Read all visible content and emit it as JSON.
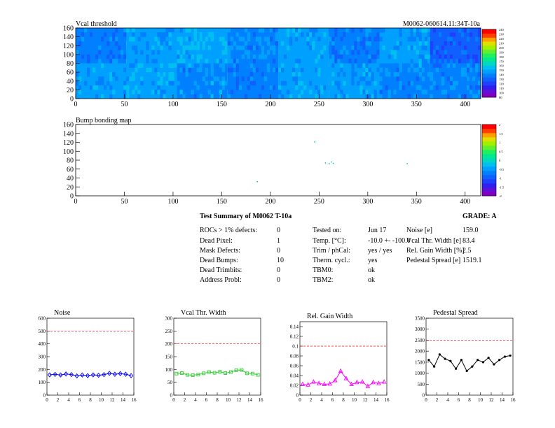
{
  "heatmap1": {
    "title": "Vcal threshold",
    "module_tag": "M0062-060614.11:34T-10a",
    "y_ticks": [
      "0",
      "20",
      "40",
      "60",
      "80",
      "100",
      "120",
      "140",
      "160"
    ],
    "x_ticks": [
      "0",
      "50",
      "100",
      "150",
      "200",
      "250",
      "300",
      "350",
      "400"
    ],
    "scale_labels": [
      "80",
      "100",
      "110",
      "120",
      "130",
      "140",
      "150",
      "160",
      "170",
      "180",
      "190",
      "200",
      "210",
      "220",
      "230",
      "240"
    ]
  },
  "heatmap2": {
    "title": "Bump bonding map",
    "y_ticks": [
      "0",
      "20",
      "40",
      "60",
      "80",
      "100",
      "120",
      "140",
      "160"
    ],
    "x_ticks": [
      "0",
      "50",
      "100",
      "150",
      "200",
      "250",
      "300",
      "350",
      "400"
    ],
    "scale_labels": [
      "-2",
      "-1.5",
      "-1",
      "-0.5",
      "0",
      "0.5",
      "1",
      "1.5",
      "2"
    ]
  },
  "summary": {
    "title": "Test Summary of M0062    T-10a",
    "grade": "GRADE:  A",
    "left_labels": [
      "ROCs > 1% defects:",
      "Dead Pixel:",
      "Mask Defects:",
      "Dead Bumps:",
      "Dead Trimbits:",
      "Address Probl:"
    ],
    "left_values": [
      "0",
      "1",
      "0",
      "10",
      "0",
      "0"
    ],
    "mid_labels": [
      "Tested on:",
      "Temp. [°C]:",
      "Trim / phCal:",
      "Therm. cycl.:",
      "TBM0:",
      "TBM2:"
    ],
    "mid_values": [
      "Jun 17",
      "-10.0 +- -100.0",
      "yes / yes",
      "yes",
      "ok",
      "ok"
    ],
    "right_labels": [
      "Noise [e]",
      "Vcal Thr. Width [e]",
      "Rel. Gain Width [%]",
      "Pedestal Spread [e]"
    ],
    "right_values": [
      "159.0",
      "83.4",
      "2.5",
      "1519.1"
    ]
  },
  "colors": {
    "noise": "#0000ff",
    "vcal": "#33cc33",
    "gain": "#ff00ff",
    "pedestal": "#000000",
    "limit": "#ff0000"
  },
  "chart_data": [
    {
      "type": "heatmap",
      "title": "Vcal threshold",
      "xlim": [
        0,
        416
      ],
      "ylim": [
        0,
        160
      ],
      "value_range": [
        80,
        240
      ],
      "roc_grid_rows": 2,
      "roc_grid_cols": 8
    },
    {
      "type": "heatmap",
      "title": "Bump bonding map",
      "xlim": [
        0,
        416
      ],
      "ylim": [
        0,
        160
      ],
      "value_range": [
        -2,
        2
      ],
      "points": [
        {
          "x": 186,
          "y": 33
        },
        {
          "x": 245,
          "y": 122
        },
        {
          "x": 256,
          "y": 75
        },
        {
          "x": 260,
          "y": 73
        },
        {
          "x": 262,
          "y": 77
        },
        {
          "x": 264,
          "y": 74
        },
        {
          "x": 340,
          "y": 73
        }
      ]
    },
    {
      "type": "line",
      "title": "Noise",
      "x": [
        0,
        1,
        2,
        3,
        4,
        5,
        6,
        7,
        8,
        9,
        10,
        11,
        12,
        13,
        14,
        15
      ],
      "values": [
        158,
        162,
        157,
        165,
        160,
        150,
        157,
        152,
        158,
        155,
        160,
        170,
        163,
        168,
        163,
        152
      ],
      "xlim": [
        0,
        16
      ],
      "ylim": [
        0,
        600
      ],
      "y_ticks": [
        "0",
        "100",
        "200",
        "300",
        "400",
        "500",
        "600"
      ],
      "x_ticks": [
        "0",
        "2",
        "4",
        "6",
        "8",
        "10",
        "12",
        "14",
        "16"
      ],
      "limit": 500
    },
    {
      "type": "line",
      "title": "Vcal Thr. Width",
      "x": [
        0,
        1,
        2,
        3,
        4,
        5,
        6,
        7,
        8,
        9,
        10,
        11,
        12,
        13,
        14,
        15
      ],
      "values": [
        84,
        86,
        79,
        78,
        80,
        85,
        90,
        87,
        91,
        86,
        90,
        97,
        98,
        85,
        84,
        79
      ],
      "xlim": [
        0,
        16
      ],
      "ylim": [
        0,
        300
      ],
      "y_ticks": [
        "0",
        "50",
        "100",
        "150",
        "200",
        "250",
        "300"
      ],
      "x_ticks": [
        "0",
        "2",
        "4",
        "6",
        "8",
        "10",
        "12",
        "14",
        "16"
      ],
      "limit": 200
    },
    {
      "type": "line",
      "title": "Rel. Gain Width",
      "x": [
        0,
        1,
        2,
        3,
        4,
        5,
        6,
        7,
        8,
        9,
        10,
        11,
        12,
        13,
        14,
        15
      ],
      "values": [
        0.022,
        0.021,
        0.027,
        0.024,
        0.022,
        0.023,
        0.03,
        0.049,
        0.034,
        0.022,
        0.026,
        0.027,
        0.018,
        0.026,
        0.024,
        0.027
      ],
      "xlim": [
        0,
        16
      ],
      "ylim": [
        0,
        0.15
      ],
      "y_ticks": [
        "0",
        "0.02",
        "0.04",
        "0.06",
        "0.08",
        "0.1",
        "0.12",
        "0.14"
      ],
      "x_ticks": [
        "0",
        "2",
        "4",
        "6",
        "8",
        "10",
        "12",
        "14",
        "16"
      ],
      "limit": 0.1
    },
    {
      "type": "line",
      "title": "Pedestal Spread",
      "x": [
        0,
        1,
        2,
        3,
        4,
        5,
        6,
        7,
        8,
        9,
        10,
        11,
        12,
        13,
        14,
        15
      ],
      "values": [
        1600,
        1300,
        1850,
        1650,
        1550,
        1200,
        1600,
        1100,
        1300,
        1600,
        1500,
        1700,
        1400,
        1600,
        1750,
        1800
      ],
      "xlim": [
        0,
        16
      ],
      "ylim": [
        0,
        3500
      ],
      "y_ticks": [
        "0",
        "500",
        "1000",
        "1500",
        "2000",
        "2500",
        "3000",
        "3500"
      ],
      "x_ticks": [
        "0",
        "2",
        "4",
        "6",
        "8",
        "10",
        "12",
        "14",
        "16"
      ],
      "limit": 2500
    }
  ]
}
